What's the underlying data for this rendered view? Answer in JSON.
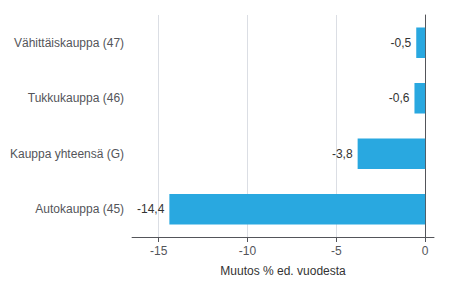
{
  "chart_data": {
    "type": "bar",
    "orientation": "horizontal",
    "categories": [
      "Autokauppa (45)",
      "Kauppa yhteensä (G)",
      "Tukkukauppa (46)",
      "Vähittäiskauppa (47)"
    ],
    "values": [
      -14.4,
      -3.8,
      -0.6,
      -0.5
    ],
    "value_labels": [
      "-14,4",
      "-3,8",
      "-0,6",
      "-0,5"
    ],
    "data_labels": true,
    "color": "#29a8e0",
    "xlabel": "Muutos % ed. vuodesta",
    "xlim": [
      -16.5,
      0.5
    ],
    "xticks": [
      -15,
      -10,
      -5,
      0
    ],
    "grid": true
  }
}
